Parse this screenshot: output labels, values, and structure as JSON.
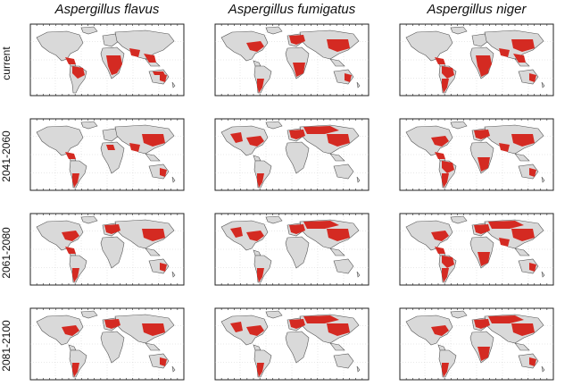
{
  "columns": [
    "Aspergillus flavus",
    "Aspergillus fumigatus",
    "Aspergillus niger"
  ],
  "rows": [
    "current",
    "2041-2060",
    "2061-2080",
    "2081-2100"
  ],
  "colors": {
    "suitable": "#d42a22",
    "land": "#d9d9d9",
    "coast": "#555555",
    "frame": "#222222",
    "grid": "#c8c8c8"
  },
  "panels": [
    [
      {
        "regions": [
          "central-america",
          "south-america-north",
          "africa-central",
          "south-asia",
          "southeast-asia",
          "australia-north",
          "australia-east"
        ]
      },
      {
        "regions": [
          "north-america-east",
          "europe",
          "east-asia",
          "south-america-south",
          "africa-south",
          "australia-east"
        ]
      },
      {
        "regions": [
          "central-america",
          "south-america-north",
          "south-america-south",
          "africa-central",
          "africa-south",
          "south-asia",
          "southeast-asia",
          "east-asia",
          "australia-east"
        ]
      }
    ],
    [
      {
        "regions": [
          "central-america",
          "south-america-south",
          "africa-north-patches",
          "south-asia",
          "east-asia",
          "australia-east"
        ]
      },
      {
        "regions": [
          "north-america-east",
          "north-america-west",
          "europe",
          "russia",
          "east-asia",
          "south-america-south"
        ]
      },
      {
        "regions": [
          "north-america-east",
          "central-america",
          "south-america-north",
          "south-america-south",
          "europe",
          "africa-south",
          "east-asia",
          "south-asia",
          "australia-east"
        ]
      }
    ],
    [
      {
        "regions": [
          "north-america-east",
          "central-america",
          "south-america-south",
          "europe",
          "east-asia",
          "australia-east"
        ]
      },
      {
        "regions": [
          "north-america-east",
          "north-america-west",
          "europe",
          "russia",
          "east-asia",
          "south-america-south"
        ]
      },
      {
        "regions": [
          "north-america-east",
          "central-america",
          "south-america-north",
          "south-america-south",
          "europe",
          "russia",
          "east-asia",
          "south-asia",
          "africa-south",
          "australia-east"
        ]
      }
    ],
    [
      {
        "regions": [
          "north-america-east",
          "south-america-south",
          "europe",
          "east-asia",
          "australia-east"
        ]
      },
      {
        "regions": [
          "north-america-east",
          "north-america-west",
          "europe",
          "russia",
          "east-asia",
          "south-america-south"
        ]
      },
      {
        "regions": [
          "north-america-east",
          "south-america-south",
          "europe",
          "russia",
          "east-asia",
          "africa-south",
          "australia-east"
        ]
      }
    ]
  ]
}
